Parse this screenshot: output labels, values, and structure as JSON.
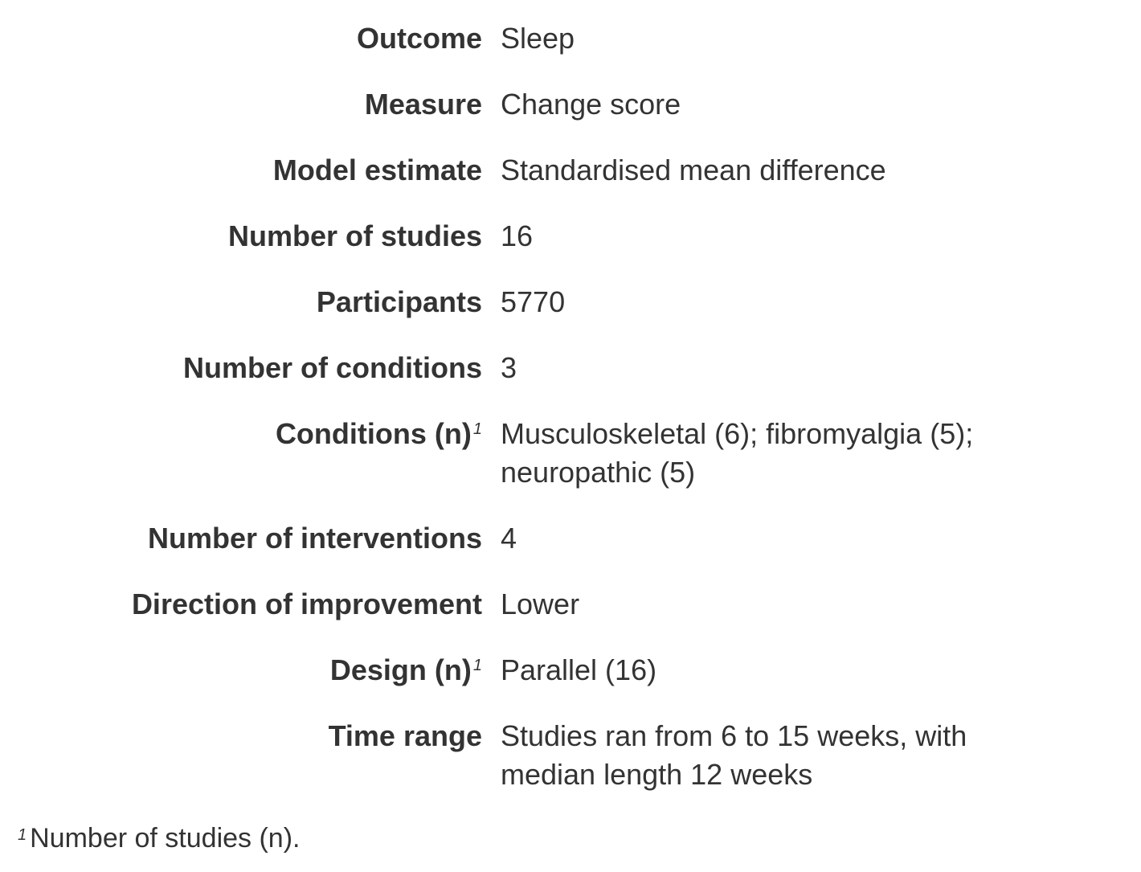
{
  "rows": [
    {
      "label": "Outcome",
      "value": "Sleep"
    },
    {
      "label": "Measure",
      "value": "Change score"
    },
    {
      "label": "Model estimate",
      "value": "Standardised mean difference"
    },
    {
      "label": "Number of studies",
      "value": "16"
    },
    {
      "label": "Participants",
      "value": "5770"
    },
    {
      "label": "Number of conditions",
      "value": "3"
    },
    {
      "label": "Conditions (n)",
      "sup": "1",
      "value": "Musculoskeletal (6); fibromyalgia (5); neuropathic (5)"
    },
    {
      "label": "Number of interventions",
      "value": "4"
    },
    {
      "label": "Direction of improvement",
      "value": "Lower"
    },
    {
      "label": "Design (n)",
      "sup": "1",
      "value": "Parallel (16)"
    },
    {
      "label": "Time range",
      "value": "Studies ran from 6 to 15 weeks, with median length 12 weeks"
    }
  ],
  "footnote": {
    "mark": "1",
    "text": "Number of studies (n)."
  }
}
